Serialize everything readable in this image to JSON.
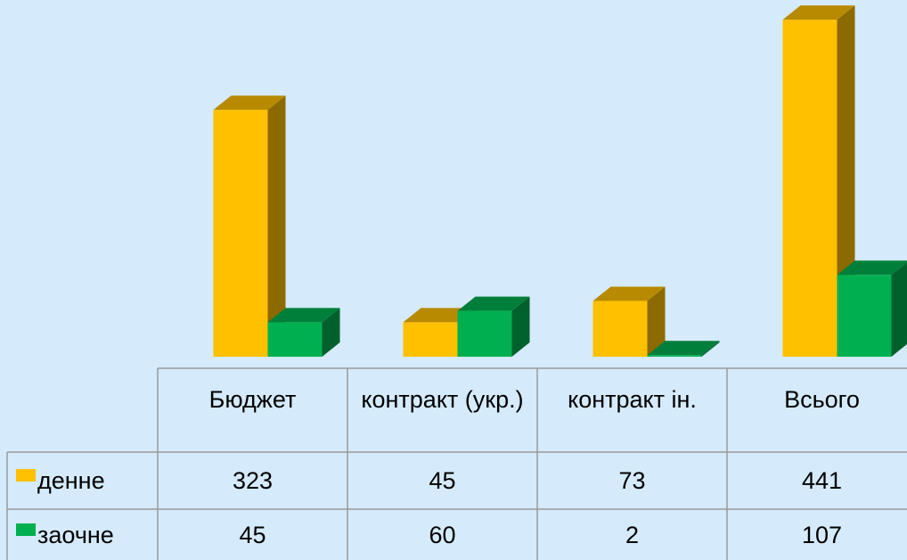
{
  "chart_data": {
    "type": "bar3d",
    "categories": [
      "Бюджет",
      "контракт (укр.)",
      "контракт ін.",
      "Всього"
    ],
    "series": [
      {
        "name": "денне",
        "color": "#FFC000",
        "values": [
          323,
          45,
          73,
          441
        ]
      },
      {
        "name": "заочне",
        "color": "#00B050",
        "values": [
          45,
          60,
          2,
          107
        ]
      }
    ]
  }
}
